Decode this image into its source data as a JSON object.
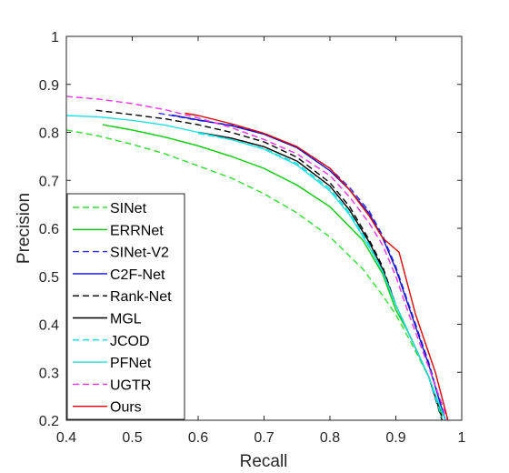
{
  "chart_data": {
    "type": "line",
    "xlabel": "Recall",
    "ylabel": "Precision",
    "xlim": [
      0.4,
      1.0
    ],
    "ylim": [
      0.2,
      1.0
    ],
    "xticks": [
      0.4,
      0.5,
      0.6,
      0.7,
      0.8,
      0.9,
      1.0
    ],
    "xtick_labels": [
      "0.4",
      "0.5",
      "0.6",
      "0.7",
      "0.8",
      "0.9",
      "1"
    ],
    "yticks": [
      0.2,
      0.3,
      0.4,
      0.5,
      0.6,
      0.7,
      0.8,
      0.9,
      1.0
    ],
    "ytick_labels": [
      "0.2",
      "0.3",
      "0.4",
      "0.5",
      "0.6",
      "0.7",
      "0.8",
      "0.9",
      "1"
    ],
    "grid": false,
    "legend_position": "bottom-left",
    "series": [
      {
        "name": "SINet",
        "color": "#33dd33",
        "dash": "dashed",
        "x": [
          0.4,
          0.45,
          0.5,
          0.55,
          0.6,
          0.65,
          0.7,
          0.75,
          0.8,
          0.85,
          0.88,
          0.9,
          0.92,
          0.95,
          0.97
        ],
        "y": [
          0.805,
          0.792,
          0.775,
          0.755,
          0.73,
          0.705,
          0.672,
          0.632,
          0.582,
          0.515,
          0.46,
          0.42,
          0.37,
          0.29,
          0.215
        ]
      },
      {
        "name": "ERRNet",
        "color": "#00cc00",
        "dash": "solid",
        "x": [
          0.455,
          0.5,
          0.55,
          0.6,
          0.65,
          0.7,
          0.75,
          0.8,
          0.85,
          0.88,
          0.9,
          0.92,
          0.95,
          0.97
        ],
        "y": [
          0.816,
          0.805,
          0.79,
          0.772,
          0.75,
          0.725,
          0.69,
          0.645,
          0.575,
          0.505,
          0.43,
          0.38,
          0.29,
          0.21
        ]
      },
      {
        "name": "SINet-V2",
        "color": "#3333dd",
        "dash": "dashed",
        "x": [
          0.54,
          0.6,
          0.65,
          0.7,
          0.75,
          0.8,
          0.83,
          0.86,
          0.88,
          0.9,
          0.92,
          0.95,
          0.975
        ],
        "y": [
          0.84,
          0.825,
          0.815,
          0.798,
          0.77,
          0.725,
          0.685,
          0.635,
          0.585,
          0.52,
          0.44,
          0.32,
          0.2
        ]
      },
      {
        "name": "C2F-Net",
        "color": "#1111cc",
        "dash": "solid",
        "x": [
          0.56,
          0.6,
          0.65,
          0.7,
          0.75,
          0.8,
          0.83,
          0.86,
          0.88,
          0.9,
          0.92,
          0.95,
          0.975
        ],
        "y": [
          0.836,
          0.826,
          0.814,
          0.796,
          0.768,
          0.72,
          0.68,
          0.63,
          0.58,
          0.515,
          0.435,
          0.315,
          0.2
        ]
      },
      {
        "name": "Rank-Net",
        "color": "#000000",
        "dash": "dashed",
        "x": [
          0.445,
          0.5,
          0.55,
          0.6,
          0.65,
          0.7,
          0.75,
          0.8,
          0.83,
          0.86,
          0.88,
          0.9,
          0.92,
          0.95,
          0.97
        ],
        "y": [
          0.846,
          0.837,
          0.828,
          0.816,
          0.8,
          0.78,
          0.748,
          0.695,
          0.645,
          0.575,
          0.52,
          0.44,
          0.38,
          0.29,
          0.2
        ]
      },
      {
        "name": "MGL",
        "color": "#000000",
        "dash": "solid",
        "x": [
          0.6,
          0.65,
          0.7,
          0.75,
          0.8,
          0.83,
          0.86,
          0.88,
          0.9,
          0.92,
          0.95,
          0.97
        ],
        "y": [
          0.8,
          0.788,
          0.77,
          0.74,
          0.688,
          0.638,
          0.57,
          0.515,
          0.44,
          0.38,
          0.29,
          0.205
        ]
      },
      {
        "name": "JCOD",
        "color": "#00e5e5",
        "dash": "dashed",
        "x": [
          0.6,
          0.65,
          0.7,
          0.75,
          0.8,
          0.83,
          0.86,
          0.88,
          0.9,
          0.92,
          0.95,
          0.97
        ],
        "y": [
          0.798,
          0.785,
          0.766,
          0.735,
          0.682,
          0.632,
          0.565,
          0.51,
          0.44,
          0.38,
          0.29,
          0.205
        ]
      },
      {
        "name": "PFNet",
        "color": "#22e0e0",
        "dash": "solid",
        "x": [
          0.4,
          0.45,
          0.5,
          0.55,
          0.6,
          0.65,
          0.7,
          0.75,
          0.8,
          0.83,
          0.86,
          0.88,
          0.9,
          0.92,
          0.95,
          0.975
        ],
        "y": [
          0.835,
          0.832,
          0.825,
          0.815,
          0.8,
          0.785,
          0.765,
          0.732,
          0.678,
          0.628,
          0.56,
          0.51,
          0.44,
          0.38,
          0.29,
          0.2
        ]
      },
      {
        "name": "UGTR",
        "color": "#ee33ee",
        "dash": "dashed",
        "x": [
          0.4,
          0.45,
          0.5,
          0.55,
          0.6,
          0.65,
          0.7,
          0.75,
          0.8,
          0.83,
          0.86,
          0.88,
          0.9,
          0.92,
          0.95,
          0.98
        ],
        "y": [
          0.875,
          0.869,
          0.86,
          0.847,
          0.83,
          0.81,
          0.785,
          0.755,
          0.71,
          0.665,
          0.61,
          0.565,
          0.5,
          0.42,
          0.31,
          0.195
        ]
      },
      {
        "name": "Ours",
        "color": "#e00000",
        "dash": "solid",
        "x": [
          0.58,
          0.6,
          0.65,
          0.7,
          0.75,
          0.8,
          0.83,
          0.86,
          0.88,
          0.905,
          0.93,
          0.96,
          0.98
        ],
        "y": [
          0.84,
          0.835,
          0.818,
          0.798,
          0.77,
          0.725,
          0.68,
          0.625,
          0.58,
          0.55,
          0.42,
          0.3,
          0.195
        ]
      }
    ]
  }
}
